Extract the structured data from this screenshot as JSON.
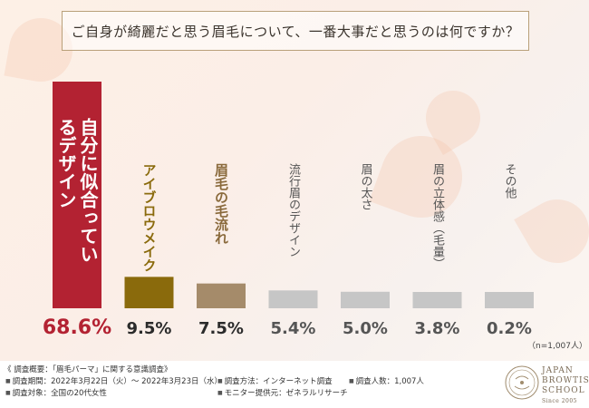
{
  "question": "ご自身が綺麗だと思う眉毛について、一番大事だと思うのは何ですか？",
  "chart_data": {
    "type": "bar",
    "categories": [
      "自分に似合っているデザイン",
      "アイブロウメイク",
      "眉毛の毛流れ",
      "流行眉のデザイン",
      "眉の太さ",
      "眉の立体感（毛量）",
      "その他"
    ],
    "series": [
      {
        "values": [
          68.6,
          9.5,
          7.5,
          5.4,
          5.0,
          3.8,
          0.2
        ]
      }
    ],
    "value_labels": [
      "68.6%",
      "9.5%",
      "7.5%",
      "5.4%",
      "5.0%",
      "3.8%",
      "0.2%"
    ],
    "ylim": [
      0,
      68.6
    ],
    "colors": [
      "#b32232",
      "#8a6a0c",
      "#a58b6a",
      "#c6c6c6",
      "#c6c6c6",
      "#c6c6c6",
      "#c6c6c6"
    ],
    "label_colors": [
      "#ffffff",
      "#ffffff",
      "#ffffff",
      "#555555",
      "#555555",
      "#555555",
      "#555555"
    ],
    "label_text_colors": [
      "#b32232",
      "#8a6a0c",
      "#8a6a3c",
      "#555555",
      "#555555",
      "#555555",
      "#555555"
    ]
  },
  "sample_note": "（n=1,007人）",
  "footer": {
    "title": "《 調査概要：「眉毛パーマ」に関する意識調査》",
    "period": "調査期間：2022年3月22日（火）～ 2022年3月23日（水）",
    "target": "調査対象：全国の20代女性",
    "method": "調査方法：インターネット調査",
    "provider": "モニター提供元：ゼネラルリサーチ",
    "count": "調査人数：1,007人"
  },
  "logo": {
    "line1": "JAPAN",
    "line2": "BROWTIST",
    "line3": "SCHOOL",
    "since": "Since 2005"
  }
}
